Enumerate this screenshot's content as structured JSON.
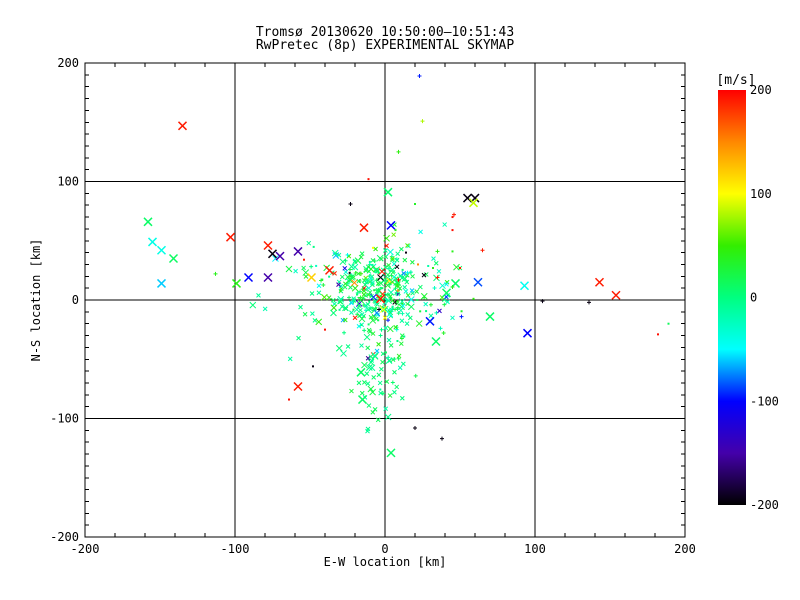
{
  "chart_data": {
    "type": "scatter",
    "title_line1": "Tromsø 20130620 10:50:00–10:51:43",
    "title_line2": "RwPretec (8p) EXPERIMENTAL SKYMAP",
    "xlabel": "E-W location [km]",
    "ylabel": "N-S location [km]",
    "xlim": [
      -200,
      200
    ],
    "ylim": [
      -200,
      200
    ],
    "x_major_ticks": [
      -200,
      -100,
      0,
      100,
      200
    ],
    "y_major_ticks": [
      -200,
      -100,
      0,
      100,
      200
    ],
    "x_tick_labels": [
      "-200",
      "-100",
      "0",
      "100",
      "200"
    ],
    "y_tick_labels": [
      "-200",
      "-100",
      "0",
      "100",
      "200"
    ],
    "x_minor_step": 20,
    "y_minor_step": 10,
    "grid_values": [
      -100,
      0,
      100
    ],
    "grid": true,
    "marker": "x",
    "colorbar": {
      "unit_label": "[m/s]",
      "range": [
        -200,
        200
      ],
      "tick_values": [
        200,
        100,
        0,
        -100,
        -200
      ],
      "tick_labels": [
        "200",
        "100",
        "0",
        "-100",
        "-200"
      ]
    },
    "colormap_stops": [
      [
        -200,
        "#000000"
      ],
      [
        -150,
        "#4400AA"
      ],
      [
        -100,
        "#0000FF"
      ],
      [
        -50,
        "#00FFFF"
      ],
      [
        0,
        "#00FF80"
      ],
      [
        50,
        "#33EE00"
      ],
      [
        100,
        "#FFFF00"
      ],
      [
        150,
        "#FF8800"
      ],
      [
        200,
        "#FF0000"
      ]
    ],
    "points_format": [
      "x_km",
      "y_km",
      "velocity_ms",
      "marker_arm_px",
      "marker_glyph"
    ],
    "points": [
      [
        -135,
        147,
        190,
        4,
        "x"
      ],
      [
        23,
        189,
        -95,
        2,
        "+"
      ],
      [
        25,
        151,
        80,
        2,
        "+"
      ],
      [
        9,
        125,
        45,
        2,
        "+"
      ],
      [
        -11,
        102,
        195,
        1,
        "."
      ],
      [
        2,
        91,
        8,
        4,
        "x"
      ],
      [
        -23,
        81,
        -195,
        2,
        "+"
      ],
      [
        20,
        81,
        35,
        1,
        "."
      ],
      [
        55,
        86,
        -195,
        4,
        "x"
      ],
      [
        60,
        86,
        -195,
        4,
        "x"
      ],
      [
        59,
        82,
        85,
        4,
        "x"
      ],
      [
        46,
        72,
        190,
        2,
        "+"
      ],
      [
        45,
        70,
        195,
        1,
        "."
      ],
      [
        -14,
        61,
        190,
        4,
        "x"
      ],
      [
        4,
        63,
        -100,
        4,
        "x"
      ],
      [
        7,
        59,
        40,
        1,
        "."
      ],
      [
        45,
        59,
        195,
        1,
        "."
      ],
      [
        -158,
        66,
        10,
        4,
        "x"
      ],
      [
        -155,
        49,
        -40,
        4,
        "x"
      ],
      [
        -149,
        42,
        -40,
        4,
        "x"
      ],
      [
        -141,
        35,
        12,
        4,
        "x"
      ],
      [
        -149,
        14,
        -60,
        4,
        "x"
      ],
      [
        -103,
        53,
        190,
        4,
        "x"
      ],
      [
        -78,
        46,
        190,
        4,
        "x"
      ],
      [
        -75,
        39,
        -195,
        4,
        "x"
      ],
      [
        -70,
        37,
        -150,
        4,
        "x"
      ],
      [
        -58,
        41,
        -150,
        4,
        "x"
      ],
      [
        -54,
        34,
        190,
        1,
        "."
      ],
      [
        -91,
        19,
        -100,
        4,
        "x"
      ],
      [
        -78,
        19,
        -150,
        4,
        "x"
      ],
      [
        -49,
        19,
        120,
        4,
        "x"
      ],
      [
        -37,
        25,
        190,
        4,
        "x"
      ],
      [
        -99,
        14,
        40,
        4,
        "x"
      ],
      [
        -113,
        22,
        40,
        2,
        "+"
      ],
      [
        35,
        41,
        40,
        2,
        "+"
      ],
      [
        45,
        41,
        40,
        1,
        "."
      ],
      [
        65,
        42,
        190,
        2,
        "+"
      ],
      [
        50,
        27,
        190,
        1,
        "."
      ],
      [
        32,
        27,
        40,
        1,
        "."
      ],
      [
        35,
        19,
        190,
        2,
        "+"
      ],
      [
        62,
        15,
        -85,
        4,
        "x"
      ],
      [
        47,
        14,
        10,
        4,
        "x"
      ],
      [
        45,
        11,
        40,
        2,
        "+"
      ],
      [
        41,
        6,
        10,
        4,
        "x"
      ],
      [
        59,
        1,
        45,
        1,
        "."
      ],
      [
        93,
        12,
        -45,
        4,
        "x"
      ],
      [
        143,
        15,
        190,
        4,
        "x"
      ],
      [
        154,
        4,
        190,
        4,
        "x"
      ],
      [
        105,
        -1,
        -195,
        2,
        "+"
      ],
      [
        136,
        -2,
        -195,
        2,
        "+"
      ],
      [
        51,
        -14,
        -95,
        2,
        "+"
      ],
      [
        30,
        -18,
        -95,
        4,
        "x"
      ],
      [
        70,
        -14,
        10,
        4,
        "x"
      ],
      [
        95,
        -28,
        -100,
        4,
        "x"
      ],
      [
        34,
        -35,
        10,
        4,
        "x"
      ],
      [
        189,
        -20,
        15,
        1,
        "."
      ],
      [
        182,
        -29,
        195,
        1,
        "."
      ],
      [
        -58,
        -73,
        190,
        4,
        "x"
      ],
      [
        -64,
        -84,
        195,
        1,
        "."
      ],
      [
        -48,
        -56,
        -195,
        1,
        "."
      ],
      [
        -16,
        -61,
        10,
        4,
        "x"
      ],
      [
        -15,
        -84,
        10,
        4,
        "x"
      ],
      [
        20,
        -108,
        -195,
        2,
        "+"
      ],
      [
        38,
        -117,
        -195,
        2,
        "+"
      ],
      [
        4,
        -129,
        10,
        4,
        "x"
      ],
      [
        -3,
        1,
        190,
        4,
        "x"
      ],
      [
        -2,
        24,
        190,
        3,
        "x"
      ],
      [
        9,
        17,
        195,
        2,
        "+"
      ],
      [
        -3,
        19,
        -195,
        3,
        "x"
      ],
      [
        -4,
        -8,
        -195,
        2,
        "+"
      ],
      [
        -1,
        -8,
        100,
        3,
        "x"
      ],
      [
        2,
        -17,
        -95,
        2,
        "+"
      ],
      [
        0,
        -15,
        100,
        2,
        "x"
      ],
      [
        15,
        23,
        -45,
        2,
        "+"
      ],
      [
        -25,
        38,
        -45,
        2,
        "+"
      ],
      [
        12,
        -5,
        -45,
        2,
        "x"
      ],
      [
        -20,
        -15,
        190,
        2,
        "x"
      ],
      [
        8,
        28,
        -195,
        2,
        "x"
      ],
      [
        -31,
        13,
        -150,
        2,
        "x"
      ],
      [
        18,
        8,
        -60,
        2,
        "x"
      ],
      [
        22,
        30,
        150,
        1,
        "."
      ],
      [
        5,
        35,
        60,
        2,
        "x"
      ],
      [
        -8,
        44,
        100,
        1,
        "."
      ],
      [
        14,
        40,
        -195,
        1,
        "."
      ],
      [
        26,
        21,
        -195,
        2,
        "x"
      ],
      [
        -40,
        -25,
        195,
        1,
        "."
      ],
      [
        -44,
        12,
        -45,
        2,
        "x"
      ]
    ],
    "dense_clusters": [
      {
        "n": 240,
        "cx": -6,
        "cy": 10,
        "sx": 16,
        "sy": 17,
        "v_mean": 8,
        "v_sd": 18,
        "anomaly_rate": 0.07
      },
      {
        "n": 120,
        "cx": -8,
        "cy": 6,
        "sx": 31,
        "sy": 26,
        "v_mean": 4,
        "v_sd": 28,
        "anomaly_rate": 0.08
      },
      {
        "n": 60,
        "cx": -3,
        "cy": -62,
        "sx": 8,
        "sy": 25,
        "v_mean": 8,
        "v_sd": 13,
        "anomaly_rate": 0.03
      }
    ],
    "seed": 20130620
  }
}
